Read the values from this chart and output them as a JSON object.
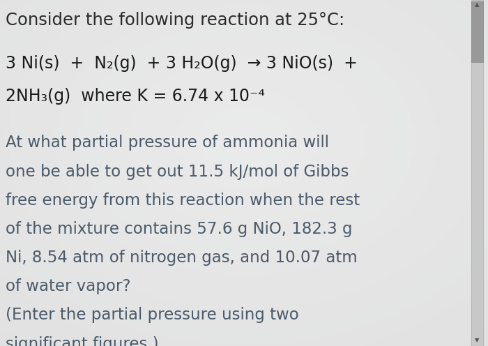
{
  "background_color": "#e8eaec",
  "title_line": "Consider the following reaction at 25°C:",
  "reaction_line1": "3 Ni(s)  +  N₂(g)  + 3 H₂O(g)  → 3 NiO(s)  +",
  "reaction_line2": "2NH₃(g)  where K = 6.74 x 10⁻⁴",
  "body_lines": [
    "At what partial pressure of ammonia will",
    "one be able to get out 11.5 kJ/mol of Gibbs",
    "free energy from this reaction when the rest",
    "of the mixture contains 57.6 g NiO, 182.3 g",
    "Ni, 8.54 atm of nitrogen gas, and 10.07 atm",
    "of water vapor?",
    "(Enter the partial pressure using two",
    "significant figures.)"
  ],
  "title_fontsize": 17.5,
  "reaction_fontsize": 17.0,
  "body_fontsize": 16.5,
  "title_color": "#2a2a2a",
  "reaction_color": "#1a1a1a",
  "body_color": "#4a5a6a",
  "scrollbar_color": "#999999",
  "scrollbar_bg": "#c8c8c8",
  "arrow_color": "#555555"
}
